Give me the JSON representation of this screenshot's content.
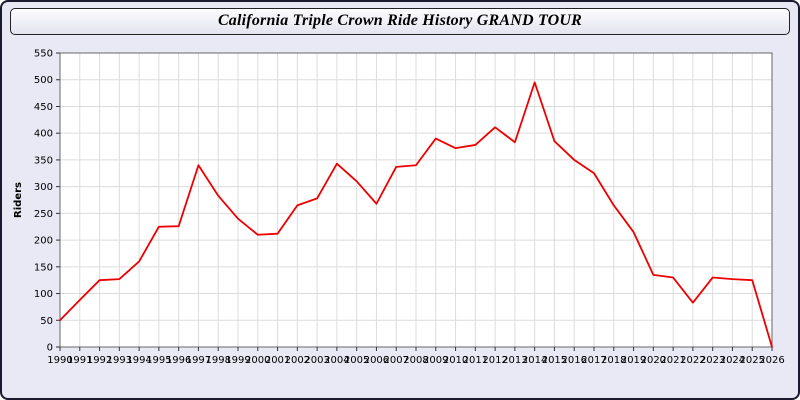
{
  "window": {
    "title": "California Triple Crown Ride History GRAND TOUR"
  },
  "chart_data": {
    "type": "line",
    "title": "California Triple Crown Ride History GRAND TOUR",
    "xlabel": "",
    "ylabel": "Riders",
    "ylim": [
      0,
      550
    ],
    "ytick_step": 50,
    "grid": true,
    "legend": "none",
    "x": [
      "1990",
      "1991",
      "1992",
      "1993",
      "1994",
      "1995",
      "1996",
      "1997",
      "1998",
      "1999",
      "2000",
      "2001",
      "2002",
      "2003",
      "2004",
      "2005",
      "2006",
      "2007",
      "2008",
      "2009",
      "2010",
      "2011",
      "2012",
      "2013",
      "2014",
      "2015",
      "2016",
      "2017",
      "2018",
      "2019",
      "2020",
      "2021",
      "2022",
      "2023",
      "2024",
      "2025",
      "2026"
    ],
    "series": [
      {
        "name": "Riders",
        "values": [
          50,
          88,
          125,
          127,
          160,
          225,
          226,
          340,
          283,
          240,
          210,
          212,
          265,
          278,
          343,
          310,
          268,
          337,
          340,
          390,
          372,
          378,
          411,
          383,
          495,
          385,
          350,
          325,
          265,
          215,
          135,
          130,
          83,
          130,
          127,
          125,
          0
        ]
      }
    ],
    "colors": {
      "line": "#ee0000",
      "window_background": "#e9e9f5",
      "plot_background": "#ffffff",
      "grid": "#dcdcdc",
      "plot_border": "#666666",
      "tick": "#333333",
      "text": "#000000"
    }
  }
}
